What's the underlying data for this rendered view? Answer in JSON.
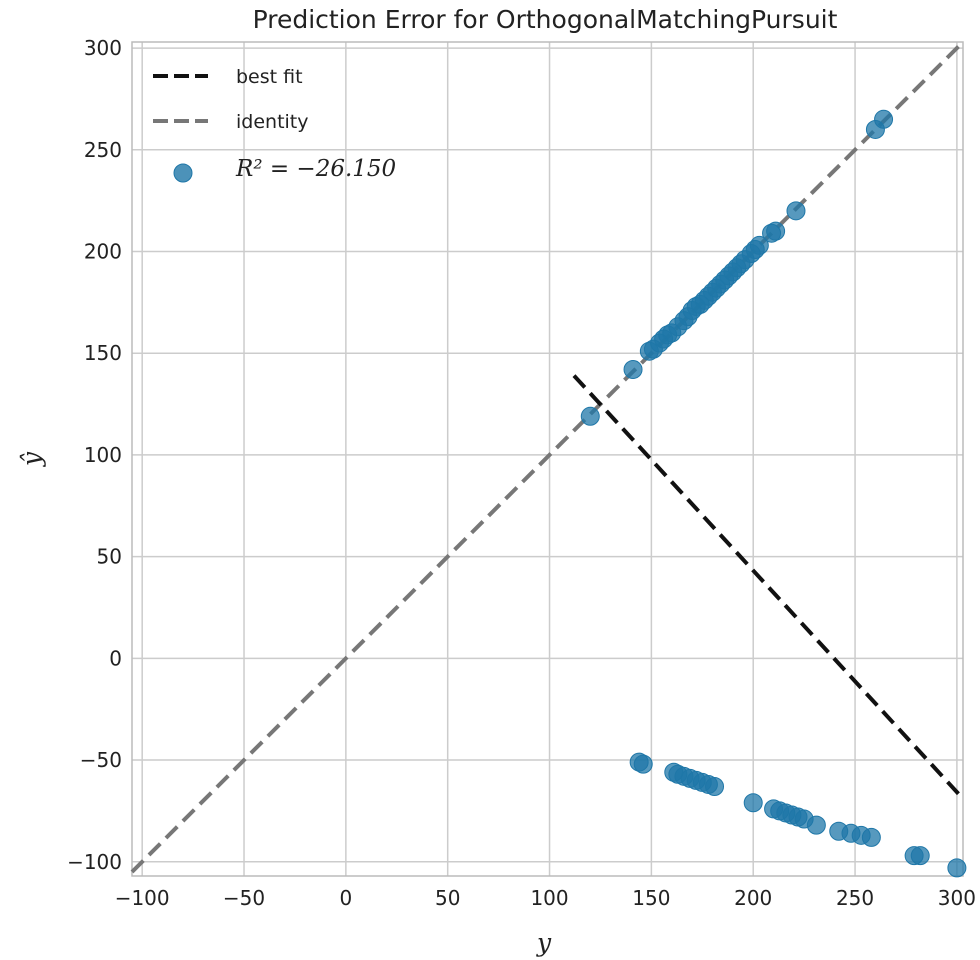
{
  "chart_data": {
    "type": "scatter",
    "title": "Prediction Error for OrthogonalMatchingPursuit",
    "xlabel": "y",
    "ylabel": "ŷ",
    "xlim": [
      -105,
      303
    ],
    "ylim": [
      -107,
      303
    ],
    "x_ticks": [
      -100,
      -50,
      0,
      50,
      100,
      150,
      200,
      250,
      300
    ],
    "y_ticks": [
      -100,
      -50,
      0,
      50,
      100,
      150,
      200,
      250,
      300
    ],
    "x_tick_labels": [
      "−100",
      "−50",
      "0",
      "50",
      "100",
      "150",
      "200",
      "250",
      "300"
    ],
    "y_tick_labels": [
      "−100",
      "−50",
      "0",
      "50",
      "100",
      "150",
      "200",
      "250",
      "300"
    ],
    "grid": true,
    "legend_position": "top-left",
    "legend": {
      "best_fit_label": "best fit",
      "identity_label": "identity",
      "r2_label": "R² = −26.150"
    },
    "colors": {
      "points": "#1f77a8",
      "best_fit": "#111111",
      "identity": "#777777",
      "grid": "#cccccc"
    },
    "best_fit_line": {
      "x": [
        112,
        303
      ],
      "y": [
        139,
        -69
      ]
    },
    "identity_line": {
      "x": [
        -105,
        303
      ],
      "y": [
        -105,
        303
      ]
    },
    "series": [
      {
        "values": [
          [
            120,
            119
          ],
          [
            141,
            142
          ],
          [
            149,
            151
          ],
          [
            151,
            152
          ],
          [
            154,
            155
          ],
          [
            156,
            157
          ],
          [
            158,
            159
          ],
          [
            160,
            160
          ],
          [
            163,
            163
          ],
          [
            166,
            166
          ],
          [
            168,
            168
          ],
          [
            170,
            171
          ],
          [
            172,
            173
          ],
          [
            174,
            174
          ],
          [
            176,
            176
          ],
          [
            178,
            178
          ],
          [
            180,
            180
          ],
          [
            182,
            182
          ],
          [
            184,
            184
          ],
          [
            186,
            186
          ],
          [
            188,
            188
          ],
          [
            190,
            190
          ],
          [
            192,
            192
          ],
          [
            194,
            194
          ],
          [
            196,
            196
          ],
          [
            199,
            199
          ],
          [
            201,
            201
          ],
          [
            203,
            203
          ],
          [
            209,
            209
          ],
          [
            211,
            210
          ],
          [
            221,
            220
          ],
          [
            260,
            260
          ],
          [
            264,
            265
          ],
          [
            144,
            -51
          ],
          [
            146,
            -52
          ],
          [
            161,
            -56
          ],
          [
            163,
            -57
          ],
          [
            166,
            -58
          ],
          [
            169,
            -59
          ],
          [
            172,
            -60
          ],
          [
            175,
            -61
          ],
          [
            178,
            -62
          ],
          [
            181,
            -63
          ],
          [
            200,
            -71
          ],
          [
            210,
            -74
          ],
          [
            213,
            -75
          ],
          [
            216,
            -76
          ],
          [
            219,
            -77
          ],
          [
            222,
            -78
          ],
          [
            225,
            -79
          ],
          [
            231,
            -82
          ],
          [
            242,
            -85
          ],
          [
            248,
            -86
          ],
          [
            253,
            -87
          ],
          [
            258,
            -88
          ],
          [
            279,
            -97
          ],
          [
            282,
            -97
          ],
          [
            300,
            -103
          ]
        ]
      }
    ]
  }
}
